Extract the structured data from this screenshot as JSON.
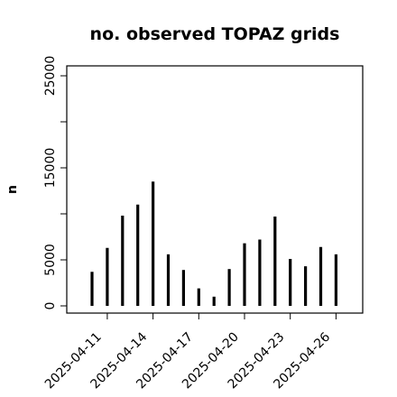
{
  "chart_data": {
    "type": "bar",
    "title": "no. observed TOPAZ grids",
    "xlabel": "",
    "ylabel": "n",
    "x": [
      "2025-04-10",
      "2025-04-11",
      "2025-04-12",
      "2025-04-13",
      "2025-04-14",
      "2025-04-15",
      "2025-04-16",
      "2025-04-17",
      "2025-04-18",
      "2025-04-19",
      "2025-04-20",
      "2025-04-21",
      "2025-04-22",
      "2025-04-23",
      "2025-04-24",
      "2025-04-25",
      "2025-04-26"
    ],
    "values": [
      3700,
      6300,
      9800,
      11000,
      13500,
      5600,
      3900,
      1900,
      1000,
      4000,
      6800,
      7200,
      9700,
      5100,
      4300,
      6400,
      5600
    ],
    "ylim": [
      0,
      25000
    ],
    "yticks": [
      0,
      5000,
      15000,
      25000
    ],
    "yticks_unlabeled": [
      10000,
      20000
    ],
    "xticks": [
      {
        "label": "2025-04-11",
        "color": "#000000"
      },
      {
        "label": "2025-04-14",
        "color": "#000000"
      },
      {
        "label": "2025-04-17",
        "color": "#2e8b2e"
      },
      {
        "label": "2025-04-20",
        "color": "#000000"
      },
      {
        "label": "2025-04-23",
        "color": "#000000"
      },
      {
        "label": "2025-04-26",
        "color": "#000000"
      }
    ],
    "bar_color": "#000000",
    "grid": false
  }
}
